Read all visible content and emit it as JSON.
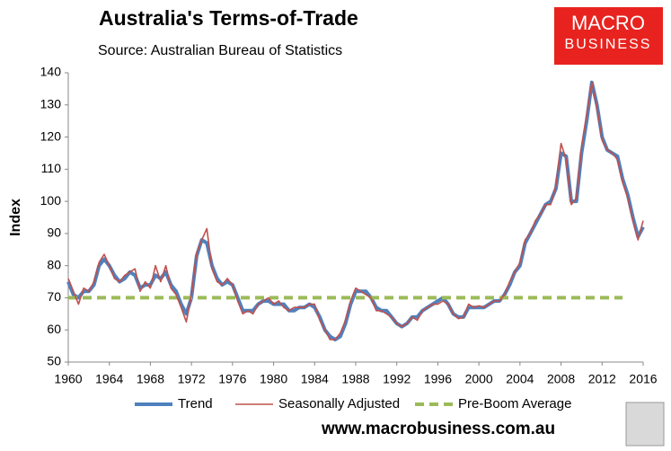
{
  "chart_data": {
    "type": "line",
    "title": "Australia's Terms-of-Trade",
    "subtitle": "Source: Australian Bureau of Statistics",
    "logo": [
      "MACRO",
      "BUSINESS"
    ],
    "footer": "www.macrobusiness.com.au",
    "ylabel": "Index",
    "xlim": [
      1960,
      2016
    ],
    "xticks": [
      1960,
      1964,
      1968,
      1972,
      1976,
      1980,
      1984,
      1988,
      1992,
      1996,
      2000,
      2004,
      2008,
      2012,
      2016
    ],
    "ylim": [
      50,
      140
    ],
    "yticks": [
      50,
      60,
      70,
      80,
      90,
      100,
      110,
      120,
      130,
      140
    ],
    "grid": false,
    "legend": "bottom",
    "x": [
      1960,
      1960.5,
      1961,
      1961.5,
      1962,
      1962.5,
      1963,
      1963.5,
      1964,
      1964.5,
      1965,
      1965.5,
      1966,
      1966.5,
      1967,
      1967.5,
      1968,
      1968.5,
      1969,
      1969.5,
      1970,
      1970.5,
      1971,
      1971.5,
      1972,
      1972.5,
      1973,
      1973.5,
      1974,
      1974.5,
      1975,
      1975.5,
      1976,
      1976.5,
      1977,
      1977.5,
      1978,
      1978.5,
      1979,
      1979.5,
      1980,
      1980.5,
      1981,
      1981.5,
      1982,
      1982.5,
      1983,
      1983.5,
      1984,
      1984.5,
      1985,
      1985.5,
      1986,
      1986.5,
      1987,
      1987.5,
      1988,
      1988.5,
      1989,
      1989.5,
      1990,
      1990.5,
      1991,
      1991.5,
      1992,
      1992.5,
      1993,
      1993.5,
      1994,
      1994.5,
      1995,
      1995.5,
      1996,
      1996.5,
      1997,
      1997.5,
      1998,
      1998.5,
      1999,
      1999.5,
      2000,
      2000.5,
      2001,
      2001.5,
      2002,
      2002.5,
      2003,
      2003.5,
      2004,
      2004.5,
      2005,
      2005.5,
      2006,
      2006.5,
      2007,
      2007.5,
      2008,
      2008.5,
      2009,
      2009.5,
      2010,
      2010.5,
      2011,
      2011.5,
      2012,
      2012.5,
      2013,
      2013.5,
      2014,
      2014.5,
      2015,
      2015.5,
      2016
    ],
    "series": [
      {
        "name": "Trend",
        "color": "#4f81bd",
        "width": 4,
        "dashed": false,
        "values": [
          75,
          71,
          70,
          72,
          72,
          74,
          80,
          82,
          80,
          77,
          75,
          76,
          78,
          77,
          73,
          74,
          74,
          77,
          76,
          78,
          74,
          72,
          68,
          65,
          70,
          83,
          88,
          87,
          80,
          76,
          74,
          75,
          74,
          70,
          66,
          66,
          66,
          68,
          69,
          69,
          68,
          68,
          68,
          66,
          66,
          67,
          67,
          68,
          67,
          64,
          60,
          58,
          57,
          58,
          62,
          68,
          72,
          72,
          72,
          70,
          67,
          66,
          66,
          64,
          62,
          61,
          62,
          64,
          64,
          66,
          67,
          68,
          69,
          70,
          68,
          65,
          64,
          64,
          67,
          67,
          67,
          67,
          68,
          69,
          69,
          71,
          74,
          78,
          80,
          87,
          90,
          93,
          96,
          99,
          100,
          104,
          115,
          114,
          100,
          100,
          115,
          125,
          137,
          130,
          120,
          116,
          115,
          114,
          107,
          102,
          95,
          89,
          92
        ]
      },
      {
        "name": "Seasonally Adjusted",
        "color": "#c0504d",
        "width": 1.6,
        "dashed": false,
        "values": [
          76,
          72,
          68,
          73,
          72,
          75,
          81,
          83.5,
          80,
          76,
          75,
          77,
          78,
          79,
          72,
          75,
          73,
          80,
          75,
          80,
          73,
          71,
          67,
          62.5,
          71,
          84,
          88,
          91.5,
          79,
          75,
          74,
          76,
          74,
          69,
          65,
          66,
          65,
          68,
          69,
          70,
          68,
          69,
          67,
          66,
          67,
          67,
          67,
          68,
          68,
          63,
          60,
          57,
          57,
          59,
          63,
          69,
          73,
          72,
          71,
          70,
          66,
          66,
          65,
          64,
          62,
          61,
          62,
          64,
          63,
          66,
          67,
          68,
          68,
          69,
          68,
          65,
          63.5,
          64,
          68,
          67,
          67.5,
          67,
          68,
          69,
          69,
          71,
          75,
          78,
          81,
          88,
          90,
          94,
          96,
          99,
          99,
          105,
          118,
          113,
          99,
          101,
          117,
          127,
          137,
          129,
          119,
          116,
          115,
          113,
          106,
          101,
          94,
          88,
          94
        ]
      },
      {
        "name": "Pre-Boom Average",
        "color": "#9bbb59",
        "width": 4,
        "dashed": true,
        "x": [
          1960,
          2014
        ],
        "values": [
          70,
          70
        ]
      }
    ]
  }
}
